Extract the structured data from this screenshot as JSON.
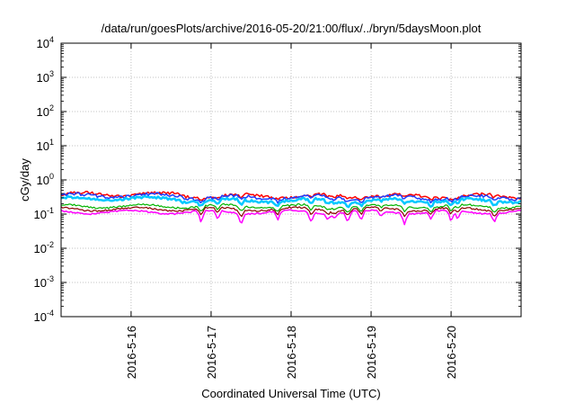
{
  "chart_data": {
    "type": "line",
    "title": "/data/run/goesPlots/archive/2016-05-20/21:00/flux/../bryn/5daysMoon.plot",
    "xlabel": "Coordinated Universal Time (UTC)",
    "ylabel": "cGy/day",
    "x_unit": "day",
    "xlim": [
      "2016-05-15 03:00",
      "2016-05-20 21:00"
    ],
    "x_ticks": [
      "2016-5-16",
      "2016-5-17",
      "2016-5-18",
      "2016-5-19",
      "2016-5-20"
    ],
    "y_scale": "log",
    "ylim": [
      0.0001,
      10000
    ],
    "y_ticks": [
      {
        "base": "10",
        "exp": "-4"
      },
      {
        "base": "10",
        "exp": "-3"
      },
      {
        "base": "10",
        "exp": "-2"
      },
      {
        "base": "10",
        "exp": "-1"
      },
      {
        "base": "10",
        "exp": "0"
      },
      {
        "base": "10",
        "exp": "1"
      },
      {
        "base": "10",
        "exp": "2"
      },
      {
        "base": "10",
        "exp": "3"
      },
      {
        "base": "10",
        "exp": "4"
      }
    ],
    "grid": true,
    "series": [
      {
        "color": "#ff0000",
        "level": 0.34,
        "noise": 0.06,
        "dip_scale": 0.35,
        "width": 1.5
      },
      {
        "color": "#1e3cff",
        "level": 0.31,
        "noise": 0.06,
        "dip_scale": 0.45,
        "width": 1.5
      },
      {
        "color": "#00c8ff",
        "level": 0.25,
        "noise": 0.05,
        "dip_scale": 0.55,
        "width": 2.5
      },
      {
        "color": "#00b400",
        "level": 0.17,
        "noise": 0.04,
        "dip_scale": 0.6,
        "width": 1.2
      },
      {
        "color": "#8b0000",
        "level": 0.14,
        "noise": 0.035,
        "dip_scale": 0.7,
        "width": 1.2
      },
      {
        "color": "#ff00ff",
        "level": 0.115,
        "noise": 0.03,
        "dip_scale": 1.0,
        "width": 1.5
      }
    ],
    "dips": [
      {
        "x": "2016-05-16 21:00",
        "depth": 0.55
      },
      {
        "x": "2016-05-17 02:00",
        "depth": 0.45
      },
      {
        "x": "2016-05-17 09:00",
        "depth": 0.55
      },
      {
        "x": "2016-05-17 20:00",
        "depth": 0.45
      },
      {
        "x": "2016-05-18 06:00",
        "depth": 0.5
      },
      {
        "x": "2016-05-18 11:00",
        "depth": 0.35
      },
      {
        "x": "2016-05-18 13:00",
        "depth": 0.3
      },
      {
        "x": "2016-05-18 17:00",
        "depth": 0.5
      },
      {
        "x": "2016-05-18 21:00",
        "depth": 0.5
      },
      {
        "x": "2016-05-19 03:00",
        "depth": 0.3
      },
      {
        "x": "2016-05-19 10:00",
        "depth": 0.5
      },
      {
        "x": "2016-05-19 18:00",
        "depth": 0.4
      },
      {
        "x": "2016-05-20 00:00",
        "depth": 0.55
      },
      {
        "x": "2016-05-20 02:00",
        "depth": 0.45
      },
      {
        "x": "2016-05-20 13:00",
        "depth": 0.45
      }
    ]
  }
}
